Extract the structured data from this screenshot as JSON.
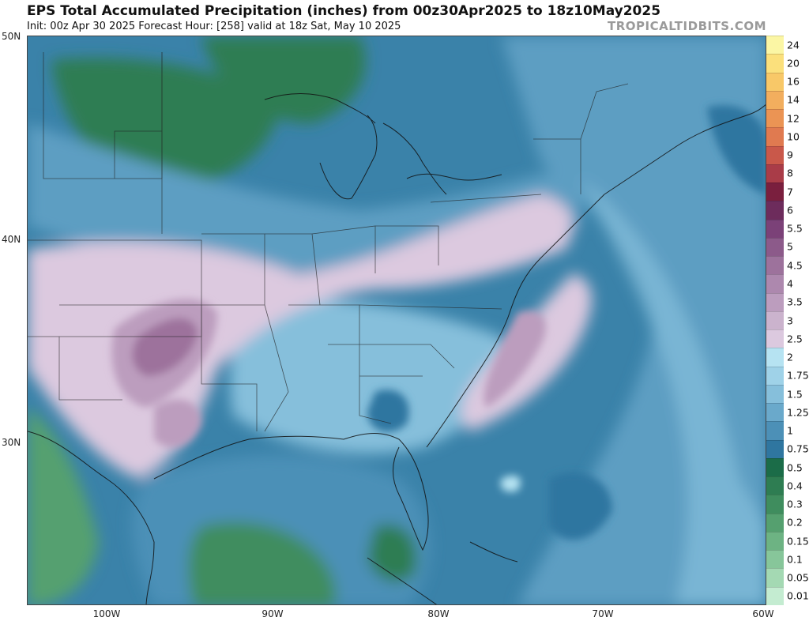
{
  "header": {
    "title": "EPS Total Accumulated Precipitation (inches) from 00z30Apr2025 to 18z10May2025",
    "subtitle": "Init: 00z Apr 30 2025   Forecast Hour: [258]   valid at 18z Sat, May 10 2025",
    "brand": "TROPICALTIDBITS.COM"
  },
  "axes": {
    "lat_labels": [
      "50N",
      "40N",
      "30N"
    ],
    "lon_labels": [
      "100W",
      "90W",
      "80W",
      "70W",
      "60W"
    ]
  },
  "colorbar": {
    "levels": [
      "24",
      "20",
      "16",
      "14",
      "12",
      "10",
      "9",
      "8",
      "7",
      "6",
      "5.5",
      "5",
      "4.5",
      "4",
      "3.5",
      "3",
      "2.5",
      "2",
      "1.75",
      "1.5",
      "1.25",
      "1",
      "0.75",
      "0.5",
      "0.4",
      "0.3",
      "0.2",
      "0.15",
      "0.1",
      "0.05",
      "0.01"
    ],
    "colors": [
      "#fbf6a4",
      "#fbe07c",
      "#f8c868",
      "#f2ae5e",
      "#eb9454",
      "#e07a50",
      "#c9584a",
      "#a93c48",
      "#7a1f3e",
      "#6d2c5c",
      "#7b4178",
      "#8c5a8a",
      "#9d729c",
      "#ad88ae",
      "#bc9dbe",
      "#cbb3cd",
      "#dcc9df",
      "#b6e3f2",
      "#9fd2e8",
      "#86bfdb",
      "#6aa9cb",
      "#4c90b7",
      "#2f76a0",
      "#1b6c48",
      "#2e7d52",
      "#3f8d5e",
      "#55a06f",
      "#6db383",
      "#87c69a",
      "#a4d9b3",
      "#c4ecd1"
    ]
  },
  "chart_data": {
    "type": "map",
    "title": "EPS Total Accumulated Precipitation (inches) from 00z30Apr2025 to 18z10May2025",
    "units": "inches",
    "lat_range": [
      22,
      50
    ],
    "lon_range": [
      -105,
      -60
    ]
  }
}
